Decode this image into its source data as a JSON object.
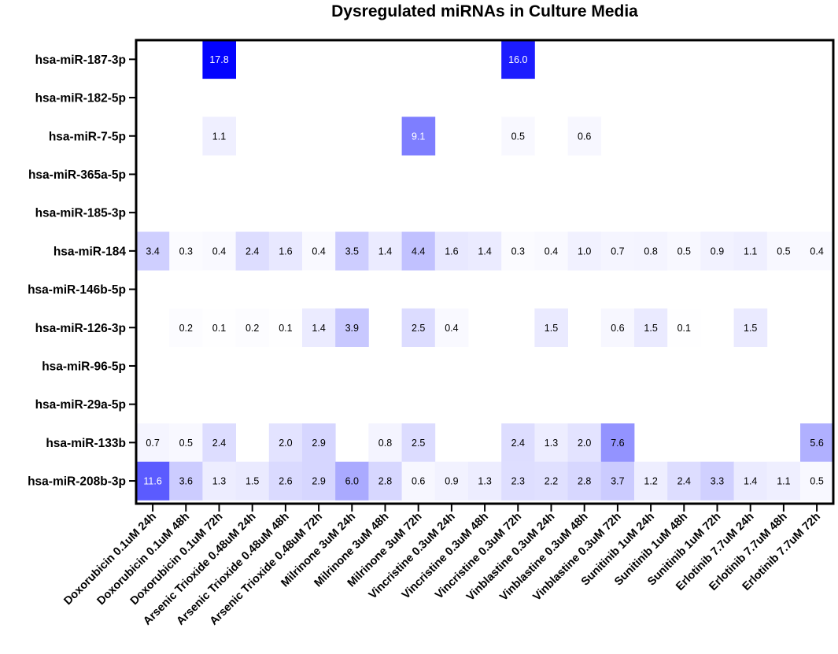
{
  "chart_data": {
    "type": "heatmap",
    "title": "Dysregulated miRNAs in Culture Media",
    "xlabel": "",
    "ylabel": "",
    "rows": [
      "hsa-miR-187-3p",
      "hsa-miR-182-5p",
      "hsa-miR-7-5p",
      "hsa-miR-365a-5p",
      "hsa-miR-185-3p",
      "hsa-miR-184",
      "hsa-miR-146b-5p",
      "hsa-miR-126-3p",
      "hsa-miR-96-5p",
      "hsa-miR-29a-5p",
      "hsa-miR-133b",
      "hsa-miR-208b-3p"
    ],
    "columns": [
      "Doxorubicin 0.1uM 24h",
      "Doxorubicin 0.1uM 48h",
      "Doxorubicin 0.1uM 72h",
      "Arsenic Trioxide 0.48uM 24h",
      "Arsenic Trioxide 0.48uM 48h",
      "Arsenic Trioxide 0.48uM 72h",
      "Milrinone 3uM 24h",
      "Milrinone 3uM 48h",
      "Milrinone 3uM 72h",
      "Vincristine 0.3uM 24h",
      "Vincristine 0.3uM 48h",
      "Vincristine 0.3uM 72h",
      "Vinblastine 0.3uM 24h",
      "Vinblastine 0.3uM 48h",
      "Vinblastine 0.3uM 72h",
      "Sunitinib 1uM 24h",
      "Sunitinib 1uM 48h",
      "Sunitinib 1uM 72h",
      "Erlotinib 7.7uM 24h",
      "Erlotinib 7.7uM 48h",
      "Erlotinib 7.7uM 72h"
    ],
    "values": [
      [
        null,
        null,
        17.8,
        null,
        null,
        null,
        null,
        null,
        null,
        null,
        null,
        16.0,
        null,
        null,
        null,
        null,
        null,
        null,
        null,
        null,
        null
      ],
      [
        null,
        null,
        null,
        null,
        null,
        null,
        null,
        null,
        null,
        null,
        null,
        null,
        null,
        null,
        null,
        null,
        null,
        null,
        null,
        null,
        null
      ],
      [
        null,
        null,
        1.1,
        null,
        null,
        null,
        null,
        null,
        9.1,
        null,
        null,
        0.5,
        null,
        0.6,
        null,
        null,
        null,
        null,
        null,
        null,
        null
      ],
      [
        null,
        null,
        null,
        null,
        null,
        null,
        null,
        null,
        null,
        null,
        null,
        null,
        null,
        null,
        null,
        null,
        null,
        null,
        null,
        null,
        null
      ],
      [
        null,
        null,
        null,
        null,
        null,
        null,
        null,
        null,
        null,
        null,
        null,
        null,
        null,
        null,
        null,
        null,
        null,
        null,
        null,
        null,
        null
      ],
      [
        3.4,
        0.3,
        0.4,
        2.4,
        1.6,
        0.4,
        3.5,
        1.4,
        4.4,
        1.6,
        1.4,
        0.3,
        0.4,
        1.0,
        0.7,
        0.8,
        0.5,
        0.9,
        1.1,
        0.5,
        0.4
      ],
      [
        null,
        null,
        null,
        null,
        null,
        null,
        null,
        null,
        null,
        null,
        null,
        null,
        null,
        null,
        null,
        null,
        null,
        null,
        null,
        null,
        null
      ],
      [
        null,
        0.2,
        0.1,
        0.2,
        0.1,
        1.4,
        3.9,
        null,
        2.5,
        0.4,
        null,
        null,
        1.5,
        null,
        0.6,
        1.5,
        0.1,
        null,
        1.5,
        null,
        null
      ],
      [
        null,
        null,
        null,
        null,
        null,
        null,
        null,
        null,
        null,
        null,
        null,
        null,
        null,
        null,
        null,
        null,
        null,
        null,
        null,
        null,
        null
      ],
      [
        null,
        null,
        null,
        null,
        null,
        null,
        null,
        null,
        null,
        null,
        null,
        null,
        null,
        null,
        null,
        null,
        null,
        null,
        null,
        null,
        null
      ],
      [
        0.7,
        0.5,
        2.4,
        null,
        2.0,
        2.9,
        null,
        0.8,
        2.5,
        null,
        null,
        2.4,
        1.3,
        2.0,
        7.6,
        null,
        null,
        null,
        null,
        null,
        5.6
      ],
      [
        11.6,
        3.6,
        1.3,
        1.5,
        2.6,
        2.9,
        6.0,
        2.8,
        0.6,
        0.9,
        1.3,
        2.3,
        2.2,
        2.8,
        3.7,
        1.2,
        2.4,
        3.3,
        1.4,
        1.1,
        0.5
      ]
    ],
    "value_range": [
      0,
      18
    ],
    "colormap": {
      "low": "#ffffff",
      "high": "#0000ff"
    },
    "legend": "none",
    "grid": false
  }
}
